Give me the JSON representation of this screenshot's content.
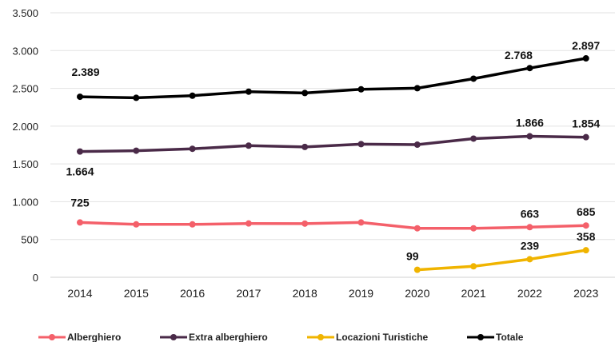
{
  "chart_data": {
    "type": "line",
    "title": "",
    "xlabel": "",
    "ylabel": "",
    "ylim": [
      0,
      3500
    ],
    "yticks": [
      0,
      500,
      1000,
      1500,
      2000,
      2500,
      3000,
      3500
    ],
    "ytick_labels": [
      "0",
      "500",
      "1.000",
      "1.500",
      "2.000",
      "2.500",
      "3.000",
      "3.500"
    ],
    "categories": [
      "2014",
      "2015",
      "2016",
      "2017",
      "2018",
      "2019",
      "2020",
      "2021",
      "2022",
      "2023"
    ],
    "grid": true,
    "legend_position": "bottom",
    "series": [
      {
        "name": "Alberghiero",
        "color": "#f4606a",
        "values": [
          725,
          700,
          700,
          712,
          710,
          725,
          648,
          648,
          663,
          685
        ],
        "labels": [
          {
            "index": 0,
            "text": "725"
          },
          {
            "index": 8,
            "text": "663"
          },
          {
            "index": 9,
            "text": "685"
          }
        ]
      },
      {
        "name": "Extra alberghiero",
        "color": "#4a2a48",
        "values": [
          1664,
          1675,
          1700,
          1742,
          1725,
          1762,
          1755,
          1835,
          1866,
          1854
        ],
        "labels": [
          {
            "index": 0,
            "text": "1.664"
          },
          {
            "index": 8,
            "text": "1.866"
          },
          {
            "index": 9,
            "text": "1.854"
          }
        ]
      },
      {
        "name": "Locazioni Turistiche",
        "color": "#f0b400",
        "values": [
          null,
          null,
          null,
          null,
          null,
          null,
          99,
          145,
          239,
          358
        ],
        "labels": [
          {
            "index": 6,
            "text": "99"
          },
          {
            "index": 8,
            "text": "239"
          },
          {
            "index": 9,
            "text": "358"
          }
        ]
      },
      {
        "name": "Totale",
        "color": "#000000",
        "values": [
          2389,
          2375,
          2403,
          2456,
          2438,
          2487,
          2502,
          2628,
          2768,
          2897
        ],
        "labels": [
          {
            "index": 0,
            "text": "2.389"
          },
          {
            "index": 8,
            "text": "2.768"
          },
          {
            "index": 9,
            "text": "2.897"
          }
        ]
      }
    ]
  }
}
